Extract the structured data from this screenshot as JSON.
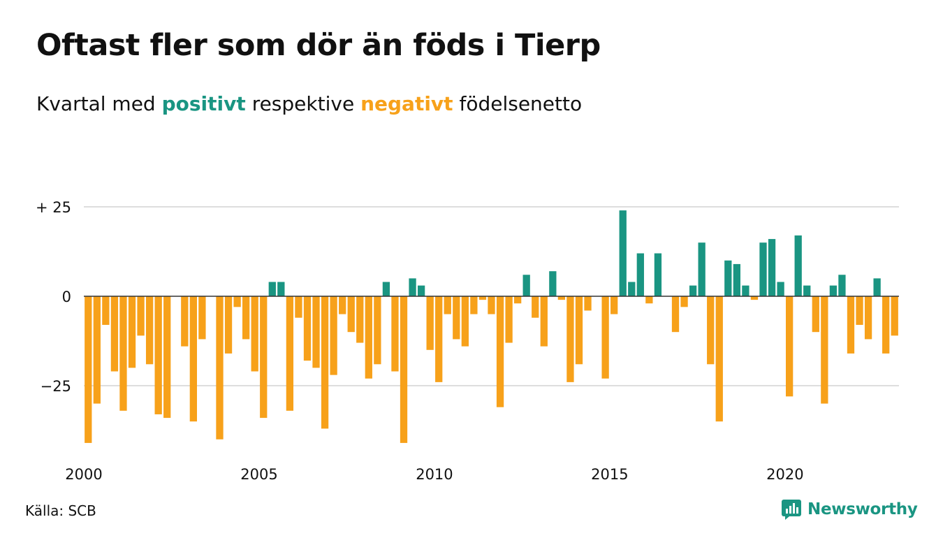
{
  "header": {
    "title": "Oftast fler som dör än föds i Tierp",
    "subtitle_start": "Kvartal med",
    "subtitle_pos": "positivt",
    "subtitle_mid": "respektive",
    "subtitle_neg": "negativt",
    "subtitle_end": "födelsenetto"
  },
  "footer": {
    "source": "Källa: SCB",
    "brand": "Newsworthy",
    "brand_icon": "newsworthy-logo-icon"
  },
  "colors": {
    "positive": "#1a9582",
    "negative": "#f7a11a",
    "grid": "#dddddd",
    "axis": "#333333"
  },
  "chart_data": {
    "type": "bar",
    "xlabel": "",
    "ylabel": "",
    "ylim": [
      -42,
      27
    ],
    "y_ticks": [
      {
        "value": 25,
        "label": "+ 25"
      },
      {
        "value": 0,
        "label": "0"
      },
      {
        "value": -25,
        "label": "−25"
      }
    ],
    "x_ticks": [
      {
        "value": 2000,
        "label": "2000"
      },
      {
        "value": 2005,
        "label": "2005"
      },
      {
        "value": 2010,
        "label": "2010"
      },
      {
        "value": 2015,
        "label": "2015"
      },
      {
        "value": 2020,
        "label": "2020"
      }
    ],
    "grid": true,
    "series": [
      {
        "start": "2000-Q1",
        "frequency": "quarterly",
        "values": [
          -41,
          -30,
          -8,
          -21,
          -32,
          -20,
          -11,
          -19,
          -33,
          -34,
          0,
          -14,
          -35,
          -12,
          0,
          -40,
          -16,
          -3,
          -12,
          -21,
          -34,
          4,
          4,
          -32,
          -6,
          -18,
          -20,
          -37,
          -22,
          -5,
          -10,
          -13,
          -23,
          -19,
          4,
          -21,
          -41,
          5,
          3,
          -15,
          -24,
          -5,
          -12,
          -14,
          -5,
          -1,
          -5,
          -31,
          -13,
          -2,
          6,
          -6,
          -14,
          7,
          -1,
          -24,
          -19,
          -4,
          0,
          -23,
          -5,
          24,
          4,
          12,
          -2,
          12,
          0,
          -10,
          -3,
          3,
          15,
          -19,
          -35,
          10,
          9,
          3,
          -1,
          15,
          16,
          4,
          -28,
          17,
          3,
          -10,
          -30,
          3,
          6,
          -16,
          -8,
          -12,
          5,
          -16,
          -11
        ]
      }
    ]
  }
}
